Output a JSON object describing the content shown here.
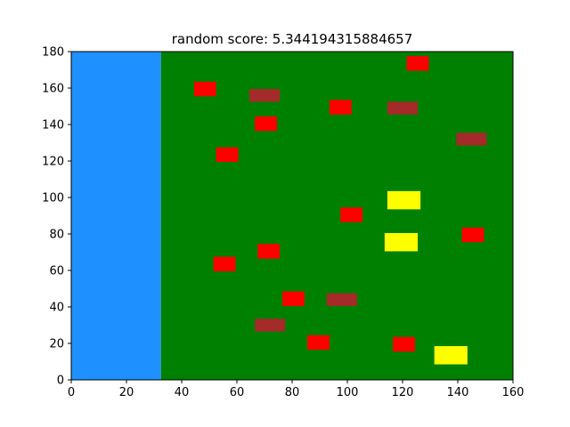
{
  "title": "random score: 5.344194315884657",
  "colors": {
    "water": "#1e90ff",
    "field": "#008000",
    "red": "#ff0000",
    "brown": "#a52a2a",
    "yellow": "#ffff00",
    "axis": "#000000"
  },
  "chart_data": {
    "type": "game-field",
    "title": "random score: 5.344194315884657",
    "xlim": [
      0,
      160
    ],
    "ylim": [
      0,
      180
    ],
    "xticks": [
      0,
      20,
      40,
      60,
      80,
      100,
      120,
      140,
      160
    ],
    "yticks": [
      0,
      20,
      40,
      60,
      80,
      100,
      120,
      140,
      160,
      180
    ],
    "regions": [
      {
        "name": "water",
        "color": "water",
        "x0": 0,
        "x1": 32.5,
        "y0": 0,
        "y1": 180
      },
      {
        "name": "field",
        "color": "field",
        "x0": 32.5,
        "x1": 160,
        "y0": 0,
        "y1": 180
      }
    ],
    "objects": [
      {
        "kind": "red",
        "x0": 44.5,
        "x1": 52.5,
        "y0": 155.5,
        "y1": 163.5
      },
      {
        "kind": "red",
        "x0": 121.5,
        "x1": 129.5,
        "y0": 169.5,
        "y1": 177.5
      },
      {
        "kind": "brown",
        "x0": 64.5,
        "x1": 75.5,
        "y0": 152.5,
        "y1": 159.5
      },
      {
        "kind": "red",
        "x0": 93.5,
        "x1": 101.5,
        "y0": 145.5,
        "y1": 153.5
      },
      {
        "kind": "brown",
        "x0": 114.5,
        "x1": 125.5,
        "y0": 145.5,
        "y1": 152.5
      },
      {
        "kind": "red",
        "x0": 66.5,
        "x1": 74.5,
        "y0": 136.5,
        "y1": 144.5
      },
      {
        "kind": "brown",
        "x0": 139.5,
        "x1": 150.5,
        "y0": 128.5,
        "y1": 135.5
      },
      {
        "kind": "red",
        "x0": 52.5,
        "x1": 60.5,
        "y0": 119.5,
        "y1": 127.5
      },
      {
        "kind": "yellow",
        "x0": 114.5,
        "x1": 126.5,
        "y0": 93.5,
        "y1": 103.5
      },
      {
        "kind": "red",
        "x0": 97.5,
        "x1": 105.5,
        "y0": 86.5,
        "y1": 94.5
      },
      {
        "kind": "red",
        "x0": 141.5,
        "x1": 149.5,
        "y0": 75.5,
        "y1": 83.5
      },
      {
        "kind": "yellow",
        "x0": 113.5,
        "x1": 125.5,
        "y0": 70.5,
        "y1": 80.5
      },
      {
        "kind": "red",
        "x0": 67.5,
        "x1": 75.5,
        "y0": 66.5,
        "y1": 74.5
      },
      {
        "kind": "red",
        "x0": 51.5,
        "x1": 59.5,
        "y0": 59.5,
        "y1": 67.5
      },
      {
        "kind": "red",
        "x0": 76.5,
        "x1": 84.5,
        "y0": 40.5,
        "y1": 48.5
      },
      {
        "kind": "brown",
        "x0": 92.5,
        "x1": 103.5,
        "y0": 40.5,
        "y1": 47.5
      },
      {
        "kind": "brown",
        "x0": 66.5,
        "x1": 77.5,
        "y0": 26.5,
        "y1": 33.5
      },
      {
        "kind": "red",
        "x0": 85.5,
        "x1": 93.5,
        "y0": 16.5,
        "y1": 24.5
      },
      {
        "kind": "red",
        "x0": 116.5,
        "x1": 124.5,
        "y0": 15.5,
        "y1": 23.5
      },
      {
        "kind": "yellow",
        "x0": 131.5,
        "x1": 143.5,
        "y0": 8.5,
        "y1": 18.5
      }
    ]
  }
}
